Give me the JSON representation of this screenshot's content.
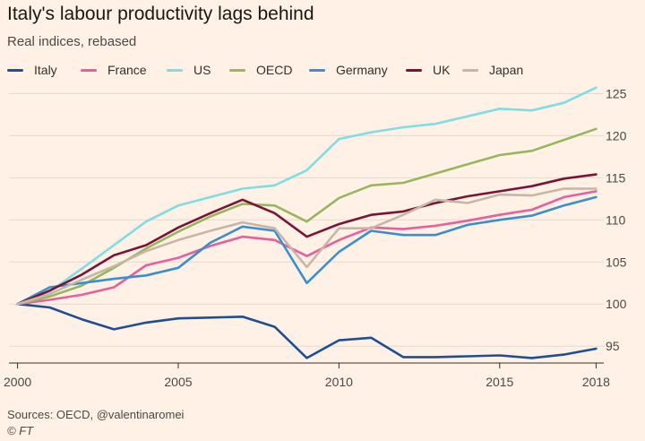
{
  "title": "Italy's labour productivity lags behind",
  "subtitle": "Real indices, rebased",
  "source": "Sources: OECD, @valentinaromei",
  "credit": "© FT",
  "chart_data": {
    "type": "line",
    "x": [
      2000,
      2001,
      2002,
      2003,
      2004,
      2005,
      2006,
      2007,
      2008,
      2009,
      2010,
      2011,
      2012,
      2013,
      2014,
      2015,
      2016,
      2017,
      2018
    ],
    "xticks": [
      2000,
      2005,
      2010,
      2015,
      2018
    ],
    "xtick_labels": [
      "2000",
      "2005",
      "2010",
      "2015",
      "2018"
    ],
    "xlim": [
      1999.9,
      2018.1
    ],
    "yticks": [
      95,
      100,
      105,
      110,
      115,
      120,
      125
    ],
    "ytick_labels": [
      "95",
      "100",
      "105",
      "110",
      "115",
      "120",
      "125"
    ],
    "ylim": [
      93,
      126
    ],
    "grid": true,
    "legend": "top",
    "series": [
      {
        "name": "Italy",
        "color": "#1f4e96",
        "values": [
          100,
          99.6,
          98.2,
          97.0,
          97.8,
          98.3,
          98.4,
          98.5,
          97.3,
          93.6,
          95.7,
          96.0,
          93.7,
          93.7,
          93.8,
          93.9,
          93.6,
          94.0,
          94.7
        ]
      },
      {
        "name": "France",
        "color": "#e8609a",
        "values": [
          100,
          100.5,
          101.1,
          102.0,
          104.6,
          105.5,
          106.9,
          108.0,
          107.6,
          105.7,
          107.6,
          109.1,
          108.9,
          109.3,
          109.9,
          110.6,
          111.2,
          112.7,
          113.4
        ]
      },
      {
        "name": "US",
        "color": "#7fdde3",
        "values": [
          100,
          101.5,
          104.2,
          107.0,
          109.8,
          111.7,
          112.7,
          113.7,
          114.1,
          115.9,
          119.6,
          120.4,
          121.0,
          121.4,
          122.3,
          123.2,
          123.0,
          123.9,
          125.7
        ]
      },
      {
        "name": "OECD",
        "color": "#96b75b",
        "values": [
          100,
          100.9,
          102.2,
          104.3,
          106.6,
          108.6,
          110.4,
          111.9,
          111.7,
          109.8,
          112.6,
          114.1,
          114.4,
          115.5,
          116.6,
          117.7,
          118.2,
          119.5,
          120.8
        ]
      },
      {
        "name": "Germany",
        "color": "#3a8fd1",
        "values": [
          100,
          102.0,
          102.5,
          103.0,
          103.4,
          104.3,
          107.3,
          109.2,
          108.7,
          102.5,
          106.2,
          108.7,
          108.2,
          108.2,
          109.4,
          110.0,
          110.5,
          111.7,
          112.7
        ]
      },
      {
        "name": "UK",
        "color": "#7a1436",
        "values": [
          100,
          101.6,
          103.5,
          105.8,
          107.0,
          109.1,
          110.8,
          112.4,
          110.8,
          108.0,
          109.5,
          110.6,
          111.0,
          112.0,
          112.8,
          113.4,
          114.0,
          114.9,
          115.4
        ]
      },
      {
        "name": "Japan",
        "color": "#c7b6a6",
        "values": [
          100,
          101.2,
          102.9,
          104.5,
          106.3,
          107.6,
          108.7,
          109.7,
          109.0,
          104.4,
          109.0,
          109.0,
          110.6,
          112.4,
          112.0,
          113.0,
          112.9,
          113.7,
          113.7
        ]
      }
    ]
  }
}
